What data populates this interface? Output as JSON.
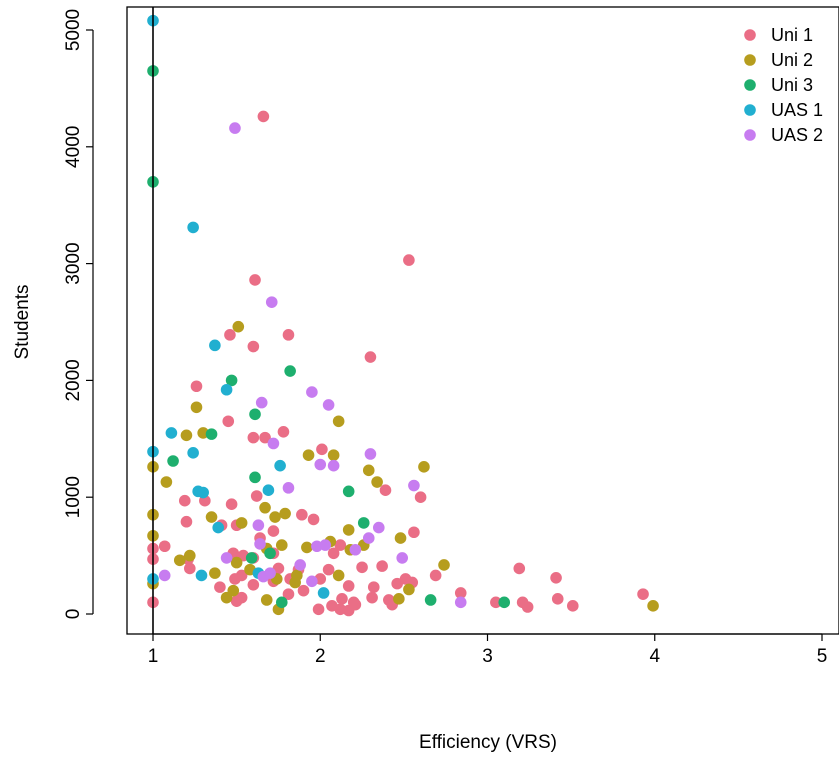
{
  "chart_data": {
    "type": "scatter",
    "xlabel": "Efficiency (VRS)",
    "ylabel": "Students",
    "xlim": [
      0.85,
      5.0
    ],
    "ylim": [
      -150,
      5200
    ],
    "x_ticks": [
      1,
      2,
      3,
      4,
      5
    ],
    "y_ticks": [
      0,
      1000,
      2000,
      3000,
      4000,
      5000
    ],
    "x_tick_labels": [
      "1",
      "2",
      "3",
      "4",
      "5"
    ],
    "y_tick_labels": [
      "0",
      "1000",
      "2000",
      "3000",
      "4000",
      "5000"
    ],
    "reference_line_x": 1,
    "grid": false,
    "legend_position": "top-right",
    "series": [
      {
        "name": "Uni 1",
        "color": "#EA6E86",
        "points": [
          [
            1.66,
            4260
          ],
          [
            2.53,
            3030
          ],
          [
            1.61,
            2860
          ],
          [
            2.3,
            2200
          ],
          [
            1.81,
            2390
          ],
          [
            1.46,
            2390
          ],
          [
            1.6,
            2290
          ],
          [
            1.26,
            1950
          ],
          [
            1.78,
            1560
          ],
          [
            1.67,
            1510
          ],
          [
            1.6,
            1510
          ],
          [
            2.01,
            1410
          ],
          [
            1.45,
            1650
          ],
          [
            1.62,
            1010
          ],
          [
            2.6,
            1000
          ],
          [
            2.39,
            1060
          ],
          [
            1.19,
            970
          ],
          [
            1.31,
            970
          ],
          [
            1.47,
            940
          ],
          [
            1.89,
            850
          ],
          [
            1.96,
            810
          ],
          [
            1.2,
            790
          ],
          [
            1.5,
            760
          ],
          [
            1.64,
            650
          ],
          [
            2.56,
            700
          ],
          [
            1.72,
            710
          ],
          [
            1.41,
            760
          ],
          [
            2.12,
            590
          ],
          [
            1.07,
            580
          ],
          [
            1.0,
            560
          ],
          [
            1.0,
            470
          ],
          [
            1.21,
            470
          ],
          [
            1.48,
            520
          ],
          [
            1.54,
            500
          ],
          [
            1.6,
            480
          ],
          [
            1.72,
            520
          ],
          [
            1.87,
            380
          ],
          [
            2.05,
            380
          ],
          [
            2.25,
            400
          ],
          [
            2.37,
            410
          ],
          [
            1.22,
            390
          ],
          [
            1.49,
            300
          ],
          [
            1.53,
            330
          ],
          [
            1.6,
            250
          ],
          [
            1.72,
            280
          ],
          [
            1.82,
            300
          ],
          [
            2.0,
            300
          ],
          [
            2.17,
            240
          ],
          [
            2.32,
            230
          ],
          [
            2.46,
            260
          ],
          [
            2.51,
            300
          ],
          [
            2.69,
            330
          ],
          [
            2.84,
            180
          ],
          [
            1.4,
            230
          ],
          [
            1.53,
            140
          ],
          [
            1.5,
            110
          ],
          [
            1.81,
            170
          ],
          [
            1.9,
            200
          ],
          [
            2.13,
            130
          ],
          [
            2.2,
            100
          ],
          [
            2.31,
            140
          ],
          [
            2.41,
            120
          ],
          [
            2.43,
            80
          ],
          [
            2.55,
            270
          ],
          [
            1.99,
            40
          ],
          [
            2.07,
            70
          ],
          [
            2.12,
            40
          ],
          [
            2.17,
            30
          ],
          [
            2.21,
            80
          ],
          [
            3.05,
            100
          ],
          [
            3.19,
            390
          ],
          [
            3.21,
            100
          ],
          [
            3.24,
            60
          ],
          [
            3.41,
            310
          ],
          [
            3.42,
            130
          ],
          [
            3.51,
            70
          ],
          [
            3.93,
            170
          ],
          [
            1.0,
            100
          ],
          [
            1.75,
            390
          ],
          [
            2.08,
            520
          ]
        ]
      },
      {
        "name": "Uni 2",
        "color": "#B69D1E",
        "points": [
          [
            1.51,
            2460
          ],
          [
            1.26,
            1770
          ],
          [
            1.2,
            1530
          ],
          [
            1.3,
            1550
          ],
          [
            2.11,
            1650
          ],
          [
            2.08,
            1360
          ],
          [
            1.93,
            1360
          ],
          [
            2.29,
            1230
          ],
          [
            2.62,
            1260
          ],
          [
            2.34,
            1130
          ],
          [
            1.0,
            1260
          ],
          [
            1.08,
            1130
          ],
          [
            1.0,
            850
          ],
          [
            1.35,
            830
          ],
          [
            1.53,
            780
          ],
          [
            1.73,
            830
          ],
          [
            1.79,
            860
          ],
          [
            1.67,
            910
          ],
          [
            2.17,
            720
          ],
          [
            2.26,
            590
          ],
          [
            2.48,
            650
          ],
          [
            1.0,
            670
          ],
          [
            1.68,
            560
          ],
          [
            1.77,
            590
          ],
          [
            1.92,
            570
          ],
          [
            2.06,
            620
          ],
          [
            1.37,
            350
          ],
          [
            1.16,
            460
          ],
          [
            1.22,
            500
          ],
          [
            1.5,
            440
          ],
          [
            1.58,
            380
          ],
          [
            1.74,
            300
          ],
          [
            1.86,
            330
          ],
          [
            2.11,
            330
          ],
          [
            2.18,
            550
          ],
          [
            2.74,
            420
          ],
          [
            1.0,
            260
          ],
          [
            1.44,
            140
          ],
          [
            1.48,
            200
          ],
          [
            1.68,
            120
          ],
          [
            1.75,
            40
          ],
          [
            1.85,
            270
          ],
          [
            2.47,
            130
          ],
          [
            2.53,
            210
          ],
          [
            3.99,
            70
          ]
        ]
      },
      {
        "name": "Uni 3",
        "color": "#1EAF6E",
        "points": [
          [
            1.0,
            4650
          ],
          [
            1.0,
            3700
          ],
          [
            1.82,
            2080
          ],
          [
            1.47,
            2000
          ],
          [
            1.61,
            1710
          ],
          [
            1.12,
            1310
          ],
          [
            1.35,
            1540
          ],
          [
            2.17,
            1050
          ],
          [
            2.26,
            780
          ],
          [
            1.61,
            1170
          ],
          [
            1.7,
            520
          ],
          [
            1.59,
            480
          ],
          [
            1.77,
            100
          ],
          [
            2.66,
            120
          ],
          [
            3.1,
            100
          ]
        ]
      },
      {
        "name": "UAS 1",
        "color": "#21AFD0",
        "points": [
          [
            1.0,
            5080
          ],
          [
            1.24,
            3310
          ],
          [
            1.37,
            2300
          ],
          [
            1.44,
            1920
          ],
          [
            1.0,
            1390
          ],
          [
            1.11,
            1550
          ],
          [
            1.24,
            1380
          ],
          [
            1.27,
            1050
          ],
          [
            1.3,
            1040
          ],
          [
            1.69,
            1060
          ],
          [
            1.76,
            1270
          ],
          [
            1.39,
            740
          ],
          [
            1.63,
            350
          ],
          [
            1.0,
            300
          ],
          [
            1.29,
            330
          ],
          [
            2.02,
            180
          ]
        ]
      },
      {
        "name": "UAS 2",
        "color": "#C77CF0",
        "points": [
          [
            1.49,
            4160
          ],
          [
            1.71,
            2670
          ],
          [
            1.95,
            1900
          ],
          [
            1.65,
            1810
          ],
          [
            2.05,
            1790
          ],
          [
            1.72,
            1460
          ],
          [
            2.3,
            1370
          ],
          [
            2.0,
            1280
          ],
          [
            2.08,
            1270
          ],
          [
            1.81,
            1080
          ],
          [
            2.56,
            1100
          ],
          [
            1.63,
            760
          ],
          [
            2.35,
            740
          ],
          [
            2.29,
            650
          ],
          [
            2.03,
            590
          ],
          [
            1.98,
            580
          ],
          [
            2.21,
            550
          ],
          [
            1.64,
            600
          ],
          [
            2.49,
            480
          ],
          [
            1.44,
            480
          ],
          [
            1.88,
            420
          ],
          [
            1.7,
            350
          ],
          [
            1.07,
            330
          ],
          [
            1.66,
            320
          ],
          [
            1.95,
            280
          ],
          [
            2.84,
            100
          ]
        ]
      }
    ]
  }
}
